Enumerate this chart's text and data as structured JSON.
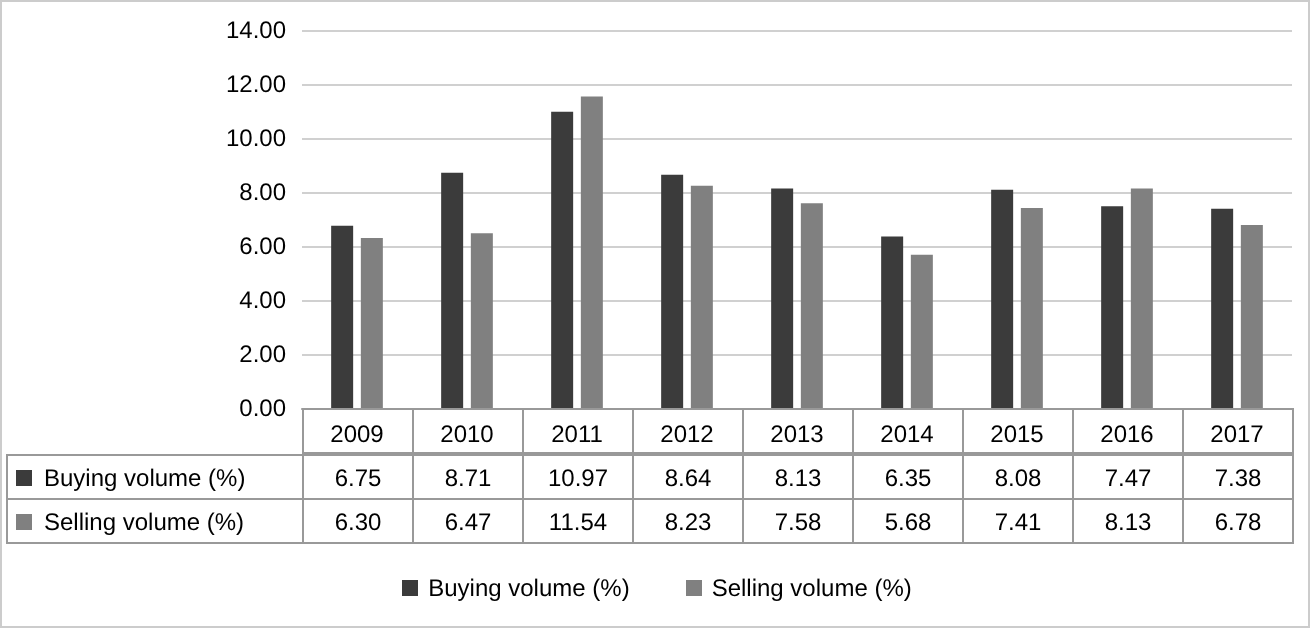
{
  "chart_data": {
    "type": "bar",
    "categories": [
      "2009",
      "2010",
      "2011",
      "2012",
      "2013",
      "2014",
      "2015",
      "2016",
      "2017"
    ],
    "series": [
      {
        "name": "Buying volume (%)",
        "color": "#3b3b3b",
        "values": [
          6.75,
          8.71,
          10.97,
          8.64,
          8.13,
          6.35,
          8.08,
          7.47,
          7.38
        ],
        "value_labels": [
          "6.75",
          "8.71",
          "10.97",
          "8.64",
          "8.13",
          "6.35",
          "8.08",
          "7.47",
          "7.38"
        ]
      },
      {
        "name": "Selling volume (%)",
        "color": "#808080",
        "values": [
          6.3,
          6.47,
          11.54,
          8.23,
          7.58,
          5.68,
          7.41,
          8.13,
          6.78
        ],
        "value_labels": [
          "6.30",
          "6.47",
          "11.54",
          "8.23",
          "7.58",
          "5.68",
          "7.41",
          "8.13",
          "6.78"
        ]
      }
    ],
    "ylim": [
      0,
      14
    ],
    "yticks": [
      {
        "value": 0,
        "label": "0.00"
      },
      {
        "value": 2,
        "label": "2.00"
      },
      {
        "value": 4,
        "label": "4.00"
      },
      {
        "value": 6,
        "label": "6.00"
      },
      {
        "value": 8,
        "label": "8.00"
      },
      {
        "value": 10,
        "label": "10.00"
      },
      {
        "value": 12,
        "label": "12.00"
      },
      {
        "value": 14,
        "label": "14.00"
      }
    ],
    "grid": "y",
    "legend": "bottom"
  }
}
